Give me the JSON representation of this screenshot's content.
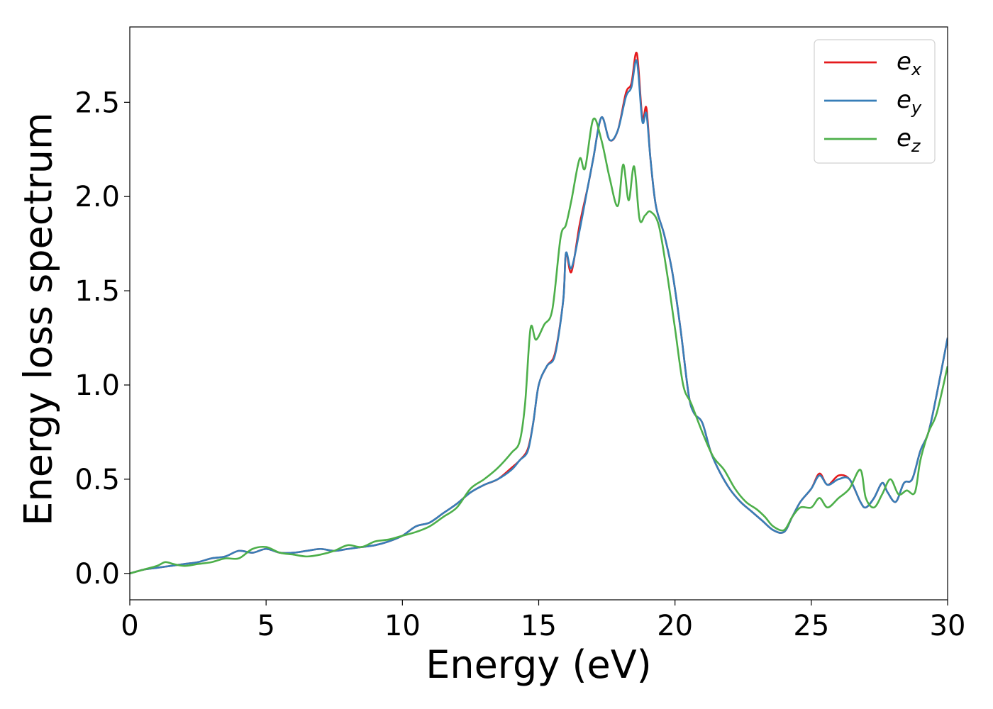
{
  "chart_data": {
    "type": "line",
    "title": "",
    "xlabel": "Energy (eV)",
    "ylabel": "Energy loss spectrum",
    "xlim": [
      0,
      30
    ],
    "ylim": [
      -0.14,
      2.9
    ],
    "xticks": [
      0,
      5,
      10,
      15,
      20,
      25,
      30
    ],
    "xtick_labels": [
      "0",
      "5",
      "10",
      "15",
      "20",
      "25",
      "30"
    ],
    "yticks": [
      0.0,
      0.5,
      1.0,
      1.5,
      2.0,
      2.5
    ],
    "ytick_labels": [
      "0.0",
      "0.5",
      "1.0",
      "1.5",
      "2.0",
      "2.5"
    ],
    "grid": false,
    "legend_position": "top-right",
    "series": [
      {
        "name": "e_x",
        "legend_base": "e",
        "legend_sub": "x",
        "color": "#e41a1c",
        "x": [
          0,
          0.5,
          1,
          1.5,
          2,
          2.5,
          3,
          3.5,
          4,
          4.5,
          5,
          5.5,
          6,
          6.5,
          7,
          7.5,
          8,
          8.5,
          9,
          9.5,
          10,
          10.5,
          11,
          11.5,
          12,
          12.5,
          13,
          13.5,
          14,
          14.3,
          14.6,
          14.8,
          15,
          15.3,
          15.6,
          15.9,
          16.0,
          16.2,
          16.5,
          16.8,
          17.0,
          17.3,
          17.6,
          17.9,
          18.2,
          18.4,
          18.6,
          18.8,
          18.95,
          19.1,
          19.3,
          19.6,
          19.9,
          20.2,
          20.5,
          20.7,
          21.0,
          21.3,
          21.6,
          22.0,
          22.4,
          22.8,
          23.2,
          23.6,
          24.0,
          24.3,
          24.6,
          25.0,
          25.3,
          25.6,
          26.0,
          26.4,
          26.8,
          27.0,
          27.3,
          27.6,
          27.8,
          28.1,
          28.4,
          28.7,
          29.0,
          29.3,
          29.6,
          30.0
        ],
        "y": [
          0.0,
          0.02,
          0.03,
          0.04,
          0.05,
          0.06,
          0.08,
          0.09,
          0.12,
          0.11,
          0.13,
          0.11,
          0.11,
          0.12,
          0.13,
          0.12,
          0.13,
          0.14,
          0.15,
          0.17,
          0.2,
          0.25,
          0.27,
          0.32,
          0.37,
          0.43,
          0.47,
          0.5,
          0.56,
          0.6,
          0.66,
          0.8,
          1.0,
          1.1,
          1.17,
          1.45,
          1.7,
          1.6,
          1.85,
          2.05,
          2.2,
          2.42,
          2.3,
          2.35,
          2.55,
          2.6,
          2.76,
          2.42,
          2.47,
          2.2,
          1.95,
          1.8,
          1.6,
          1.3,
          0.95,
          0.85,
          0.8,
          0.65,
          0.55,
          0.45,
          0.38,
          0.33,
          0.28,
          0.23,
          0.22,
          0.3,
          0.38,
          0.45,
          0.53,
          0.47,
          0.52,
          0.5,
          0.38,
          0.35,
          0.4,
          0.48,
          0.43,
          0.38,
          0.48,
          0.5,
          0.65,
          0.75,
          0.95,
          1.25
        ]
      },
      {
        "name": "e_y",
        "legend_base": "e",
        "legend_sub": "y",
        "color": "#377eb8",
        "x": [
          0,
          0.5,
          1,
          1.5,
          2,
          2.5,
          3,
          3.5,
          4,
          4.5,
          5,
          5.5,
          6,
          6.5,
          7,
          7.5,
          8,
          8.5,
          9,
          9.5,
          10,
          10.5,
          11,
          11.5,
          12,
          12.5,
          13,
          13.5,
          14,
          14.3,
          14.6,
          14.8,
          15,
          15.3,
          15.6,
          15.9,
          16.0,
          16.2,
          16.5,
          16.8,
          17.0,
          17.3,
          17.6,
          17.9,
          18.2,
          18.4,
          18.6,
          18.8,
          18.95,
          19.1,
          19.3,
          19.6,
          19.9,
          20.2,
          20.5,
          20.7,
          21.0,
          21.3,
          21.6,
          22.0,
          22.4,
          22.8,
          23.2,
          23.6,
          24.0,
          24.3,
          24.6,
          25.0,
          25.3,
          25.6,
          26.0,
          26.4,
          26.8,
          27.0,
          27.3,
          27.6,
          27.8,
          28.1,
          28.4,
          28.7,
          29.0,
          29.3,
          29.6,
          30.0
        ],
        "y": [
          0.0,
          0.02,
          0.03,
          0.04,
          0.05,
          0.06,
          0.08,
          0.09,
          0.12,
          0.11,
          0.13,
          0.11,
          0.11,
          0.12,
          0.13,
          0.12,
          0.13,
          0.14,
          0.15,
          0.17,
          0.2,
          0.25,
          0.27,
          0.32,
          0.37,
          0.43,
          0.47,
          0.5,
          0.55,
          0.6,
          0.65,
          0.8,
          1.0,
          1.1,
          1.16,
          1.45,
          1.7,
          1.62,
          1.82,
          2.05,
          2.2,
          2.42,
          2.3,
          2.35,
          2.53,
          2.58,
          2.72,
          2.4,
          2.44,
          2.2,
          1.95,
          1.8,
          1.6,
          1.3,
          0.95,
          0.85,
          0.8,
          0.65,
          0.55,
          0.45,
          0.38,
          0.33,
          0.28,
          0.23,
          0.22,
          0.3,
          0.38,
          0.45,
          0.52,
          0.47,
          0.5,
          0.5,
          0.38,
          0.35,
          0.4,
          0.48,
          0.43,
          0.38,
          0.48,
          0.5,
          0.65,
          0.75,
          0.95,
          1.25
        ]
      },
      {
        "name": "e_z",
        "legend_base": "e",
        "legend_sub": "z",
        "color": "#4daf4a",
        "x": [
          0,
          0.5,
          1,
          1.3,
          1.6,
          2,
          2.5,
          3,
          3.5,
          4,
          4.5,
          5,
          5.5,
          6,
          6.5,
          7,
          7.5,
          8,
          8.5,
          9,
          9.5,
          10,
          10.5,
          11,
          11.5,
          12,
          12.5,
          13,
          13.5,
          14,
          14.3,
          14.5,
          14.7,
          14.9,
          15.2,
          15.5,
          15.8,
          16.0,
          16.2,
          16.5,
          16.7,
          17.0,
          17.3,
          17.6,
          17.9,
          18.1,
          18.3,
          18.5,
          18.7,
          18.9,
          19.1,
          19.4,
          19.7,
          20.0,
          20.3,
          20.6,
          21.0,
          21.4,
          21.8,
          22.2,
          22.6,
          23.0,
          23.3,
          23.6,
          24.0,
          24.3,
          24.6,
          25.0,
          25.3,
          25.6,
          26.0,
          26.4,
          26.8,
          27.0,
          27.3,
          27.6,
          27.9,
          28.2,
          28.5,
          28.8,
          29.0,
          29.3,
          29.6,
          30.0
        ],
        "y": [
          0.0,
          0.02,
          0.04,
          0.06,
          0.05,
          0.04,
          0.05,
          0.06,
          0.08,
          0.08,
          0.13,
          0.14,
          0.11,
          0.1,
          0.09,
          0.1,
          0.12,
          0.15,
          0.14,
          0.17,
          0.18,
          0.2,
          0.22,
          0.25,
          0.3,
          0.35,
          0.45,
          0.5,
          0.56,
          0.64,
          0.7,
          0.9,
          1.3,
          1.24,
          1.32,
          1.4,
          1.78,
          1.85,
          1.98,
          2.2,
          2.15,
          2.41,
          2.3,
          2.1,
          1.95,
          2.17,
          1.98,
          2.16,
          1.88,
          1.9,
          1.92,
          1.85,
          1.6,
          1.3,
          1.0,
          0.9,
          0.75,
          0.62,
          0.55,
          0.45,
          0.38,
          0.34,
          0.3,
          0.25,
          0.23,
          0.3,
          0.35,
          0.35,
          0.4,
          0.35,
          0.4,
          0.45,
          0.55,
          0.4,
          0.35,
          0.42,
          0.5,
          0.42,
          0.44,
          0.43,
          0.6,
          0.75,
          0.85,
          1.1
        ]
      }
    ]
  }
}
